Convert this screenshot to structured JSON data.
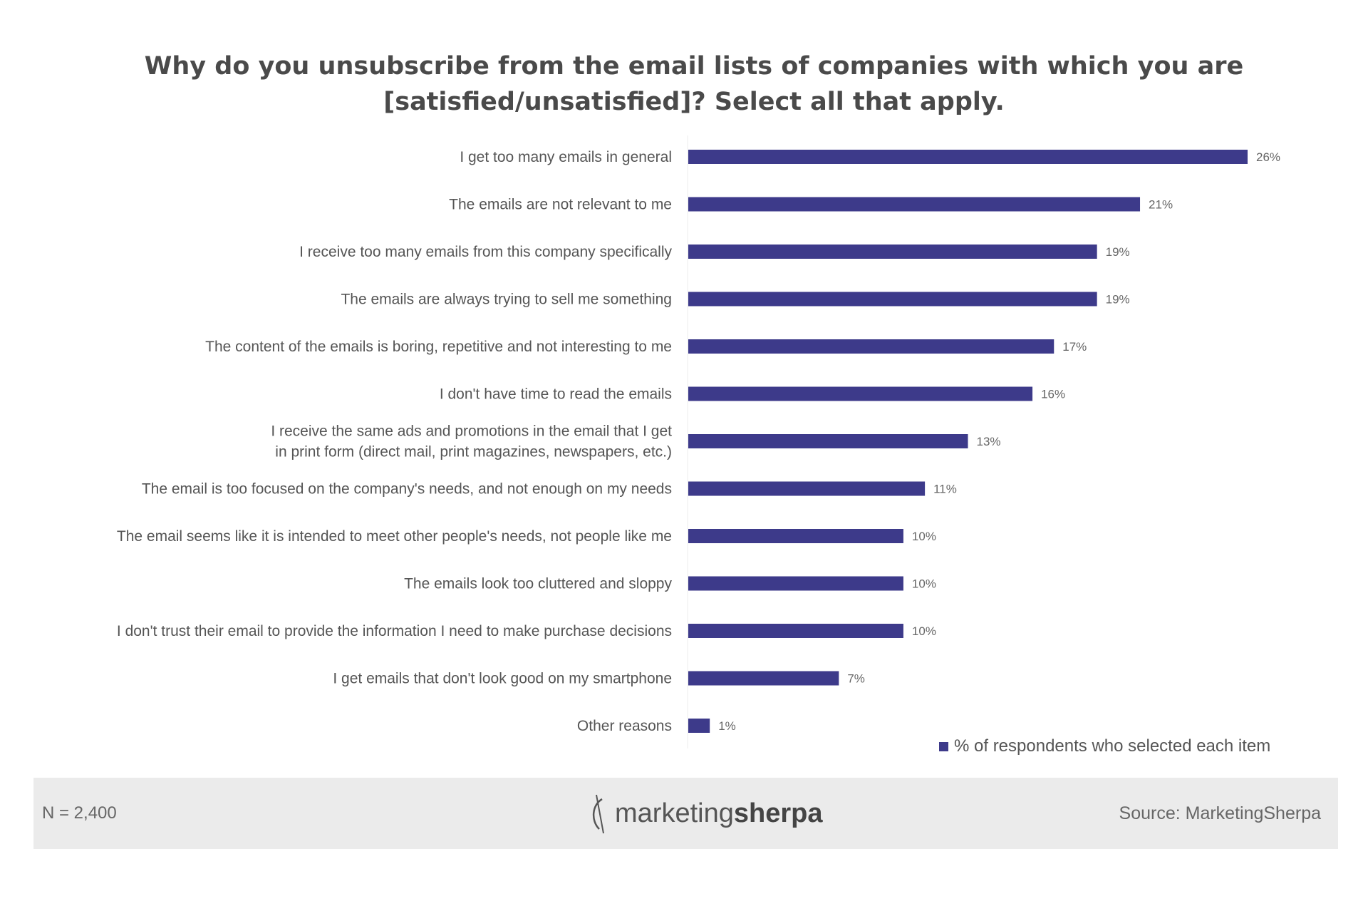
{
  "chart_data": {
    "type": "bar",
    "orientation": "horizontal",
    "title": "Why do you unsubscribe from the email lists of companies with which you are [satisfied/unsatisfied]? Select all that apply.",
    "title_lines": [
      "Why do you unsubscribe from the email lists of companies with which you are",
      "[satisfied/unsatisfied]? Select all that apply."
    ],
    "categories": [
      [
        "I get too many emails in general"
      ],
      [
        "The emails are not relevant to me"
      ],
      [
        "I receive too many emails from this company specifically"
      ],
      [
        "The emails are always trying to sell me something"
      ],
      [
        "The content of the emails is boring, repetitive and not interesting to me"
      ],
      [
        "I don't have time to read the emails"
      ],
      [
        "I receive the same ads and promotions in the email that I get",
        "in print form (direct mail, print magazines, newspapers, etc.)"
      ],
      [
        "The email is too focused on the company's needs, and not enough on my needs"
      ],
      [
        "The email seems like it is intended to meet other people's needs, not people like me"
      ],
      [
        "The emails look too cluttered and sloppy"
      ],
      [
        "I don't trust their email to provide the information I need to make purchase decisions"
      ],
      [
        "I get emails that don't look good on my smartphone"
      ],
      [
        "Other reasons"
      ]
    ],
    "series": [
      {
        "name": "% of respondents who selected each item",
        "values": [
          26,
          21,
          19,
          19,
          17,
          16,
          13,
          11,
          10,
          10,
          10,
          7,
          1
        ],
        "data_labels": [
          "26%",
          "21%",
          "19%",
          "19%",
          "17%",
          "16%",
          "13%",
          "11%",
          "10%",
          "10%",
          "10%",
          "7%",
          "1%"
        ],
        "color": "#3d3a8a"
      }
    ],
    "xlim": [
      0,
      26
    ],
    "grid": false,
    "legend_position": "bottom-right"
  },
  "legend": {
    "label": "% of respondents who selected each item"
  },
  "footer": {
    "n_label": "N = 2,400",
    "logo_text_light": "marketing",
    "logo_text_bold": "sherpa",
    "source": "Source: MarketingSherpa"
  }
}
